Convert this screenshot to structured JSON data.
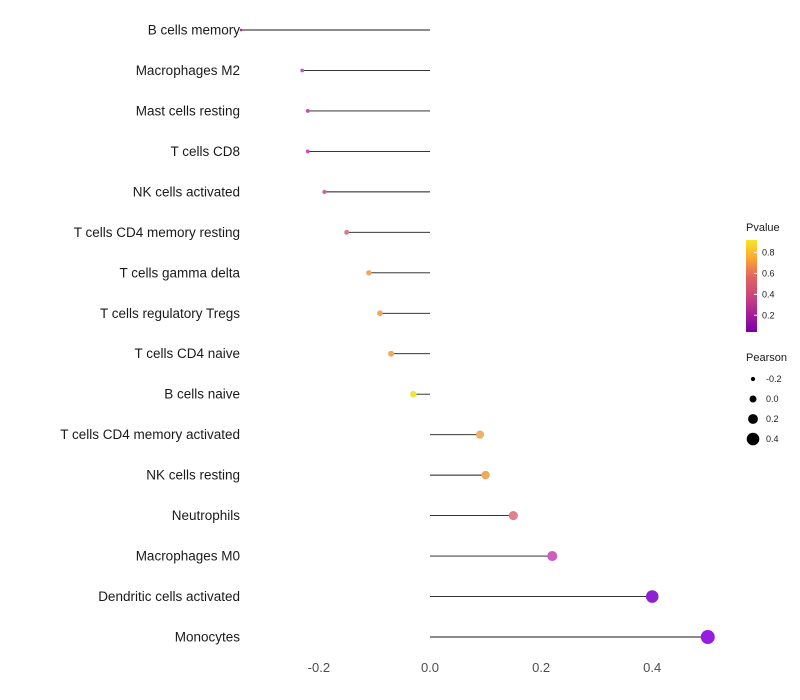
{
  "chart_data": {
    "type": "lollipop",
    "title": "",
    "xlabel": "",
    "ylabel": "",
    "xlim": [
      -0.36,
      0.54
    ],
    "x_ticks": [
      "-0.2",
      "0.0",
      "0.2",
      "0.4"
    ],
    "x_tick_values": [
      -0.2,
      0.0,
      0.2,
      0.4
    ],
    "grid": false,
    "legend_position": "right",
    "series": [
      {
        "name": "B cells memory",
        "pearson": -0.34,
        "pvalue": 0.3,
        "color": "#aa23a0"
      },
      {
        "name": "Macrophages M2",
        "pearson": -0.23,
        "pvalue": 0.38,
        "color": "#c158c2"
      },
      {
        "name": "Mast cells resting",
        "pearson": -0.22,
        "pvalue": 0.4,
        "color": "#c74fb4"
      },
      {
        "name": "T cells CD8",
        "pearson": -0.22,
        "pvalue": 0.4,
        "color": "#c94fba"
      },
      {
        "name": "NK cells activated",
        "pearson": -0.19,
        "pvalue": 0.46,
        "color": "#d45fa5"
      },
      {
        "name": "T cells CD4 memory resting",
        "pearson": -0.15,
        "pvalue": 0.55,
        "color": "#dd7a90"
      },
      {
        "name": "T cells gamma delta",
        "pearson": -0.11,
        "pvalue": 0.65,
        "color": "#eda863"
      },
      {
        "name": "T cells regulatory Tregs",
        "pearson": -0.09,
        "pvalue": 0.7,
        "color": "#eda55f"
      },
      {
        "name": "T cells CD4 naive",
        "pearson": -0.07,
        "pvalue": 0.72,
        "color": "#f0a957"
      },
      {
        "name": "B cells naive",
        "pearson": -0.03,
        "pvalue": 0.92,
        "color": "#f4e33d"
      },
      {
        "name": "T cells CD4 memory activated",
        "pearson": 0.09,
        "pvalue": 0.68,
        "color": "#eeb267"
      },
      {
        "name": "NK cells resting",
        "pearson": 0.1,
        "pvalue": 0.65,
        "color": "#efa95c"
      },
      {
        "name": "Neutrophils",
        "pearson": 0.15,
        "pvalue": 0.5,
        "color": "#e2808e"
      },
      {
        "name": "Macrophages M0",
        "pearson": 0.22,
        "pvalue": 0.36,
        "color": "#ce5fc0"
      },
      {
        "name": "Dendritic cells activated",
        "pearson": 0.4,
        "pvalue": 0.08,
        "color": "#8d20d3"
      },
      {
        "name": "Monocytes",
        "pearson": 0.5,
        "pvalue": 0.04,
        "color": "#951ee0"
      }
    ],
    "legend": {
      "pvalue": {
        "title": "Pvalue",
        "ticks": [
          "0.8",
          "0.6",
          "0.4",
          "0.2"
        ],
        "tick_values": [
          0.8,
          0.6,
          0.4,
          0.2
        ],
        "domain": [
          0.92,
          0.04
        ],
        "gradient_top_to_bottom": [
          "#f5e626",
          "#fca636",
          "#e16462",
          "#cc4778",
          "#a62098",
          "#7701a6"
        ]
      },
      "pearson": {
        "title": "Pearson",
        "entries": [
          {
            "label": "-0.2",
            "value": -0.2
          },
          {
            "label": "0.0",
            "value": 0.0
          },
          {
            "label": "0.2",
            "value": 0.2
          },
          {
            "label": "0.4",
            "value": 0.4
          }
        ],
        "dot_color": "#000000"
      }
    },
    "colors": {
      "stem": "#1a1a1a",
      "axis_text": "#4d4d4d",
      "label_text": "#1a1a1a",
      "legend_text": "#1a1a1a",
      "background": "#ffffff"
    }
  }
}
